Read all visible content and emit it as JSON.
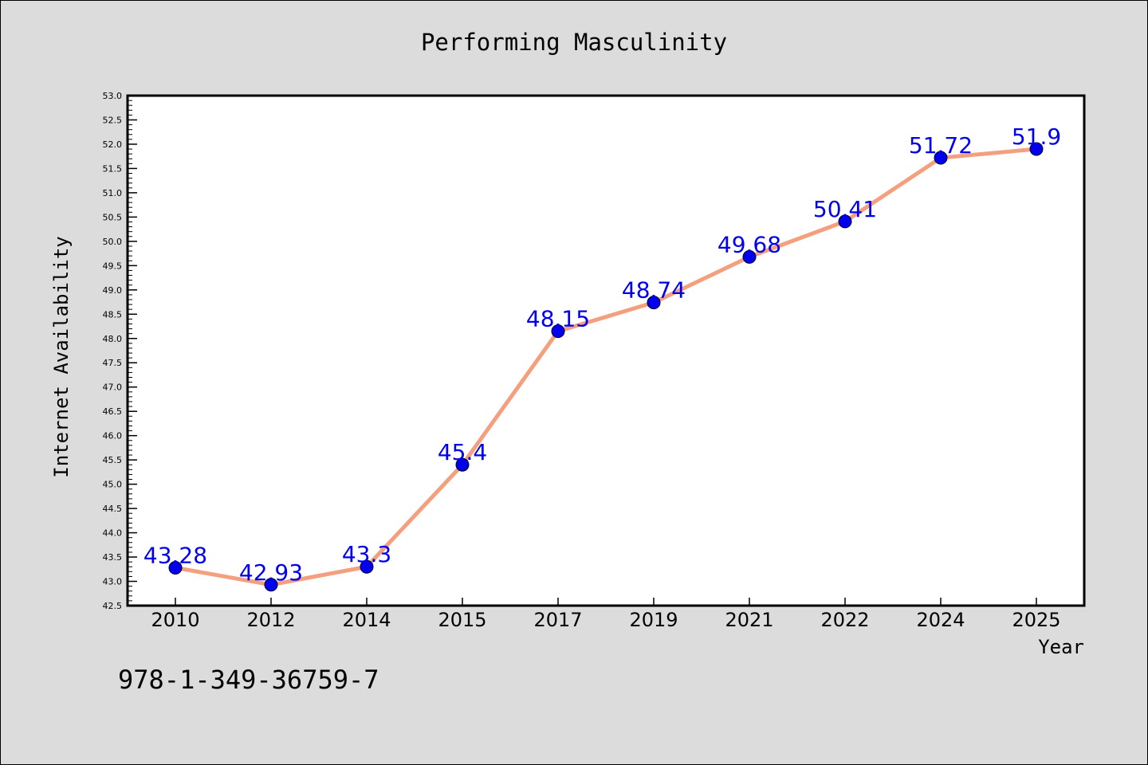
{
  "chart_data": {
    "type": "line",
    "title": "Performing Masculinity",
    "xlabel": "Year",
    "ylabel": "Internet Availability",
    "categories": [
      "2010",
      "2012",
      "2014",
      "2015",
      "2017",
      "2019",
      "2021",
      "2022",
      "2024",
      "2025"
    ],
    "values": [
      43.28,
      42.93,
      43.3,
      45.4,
      48.15,
      48.74,
      49.68,
      50.41,
      51.72,
      51.9
    ],
    "data_labels": [
      "43.28",
      "42.93",
      "43.3",
      "45.4",
      "48.15",
      "48.74",
      "49.68",
      "50.41",
      "51.72",
      "51.9"
    ],
    "ylim": [
      42.5,
      53.0
    ],
    "ytick_step": 0.5,
    "grid": false,
    "colors": {
      "line": "#f4a07e",
      "marker": "#0000ee",
      "label": "#0000ee",
      "plot_bg": "#ffffff",
      "page_bg": "#dcdcdc"
    }
  },
  "footer_text": "978-1-349-36759-7"
}
